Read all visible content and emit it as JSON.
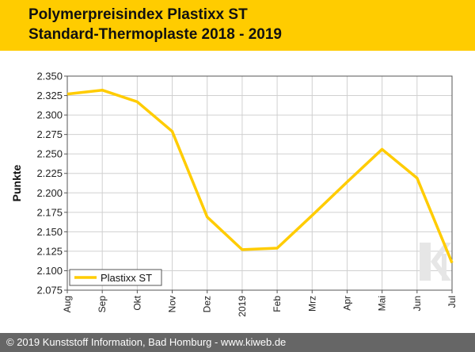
{
  "chart_data": {
    "type": "line",
    "title": "Polymerpreisindex Plastixx ST",
    "subtitle": "Standard-Thermoplaste 2018 - 2019",
    "ylabel": "Punkte",
    "xlabel": "",
    "x": [
      "Aug",
      "Sep",
      "Okt",
      "Nov",
      "Dez",
      "2019",
      "Feb",
      "Mrz",
      "Apr",
      "Mai",
      "Jun",
      "Jul"
    ],
    "ylim": [
      2.075,
      2.35
    ],
    "yticks": [
      "2.075",
      "2.100",
      "2.125",
      "2.150",
      "2.175",
      "2.200",
      "2.225",
      "2.250",
      "2.275",
      "2.300",
      "2.325",
      "2.350"
    ],
    "grid": true,
    "legend": "bottom-left",
    "series": [
      {
        "name": "Plastixx ST",
        "color": "#ffcc00",
        "values": [
          2.327,
          2.332,
          2.317,
          2.279,
          2.169,
          2.127,
          2.129,
          2.171,
          2.214,
          2.256,
          2.219,
          2.11
        ]
      }
    ]
  },
  "watermark": "ki",
  "footer": {
    "text": "© 2019 Kunststoff Information, Bad Homburg - www.kiweb.de"
  }
}
